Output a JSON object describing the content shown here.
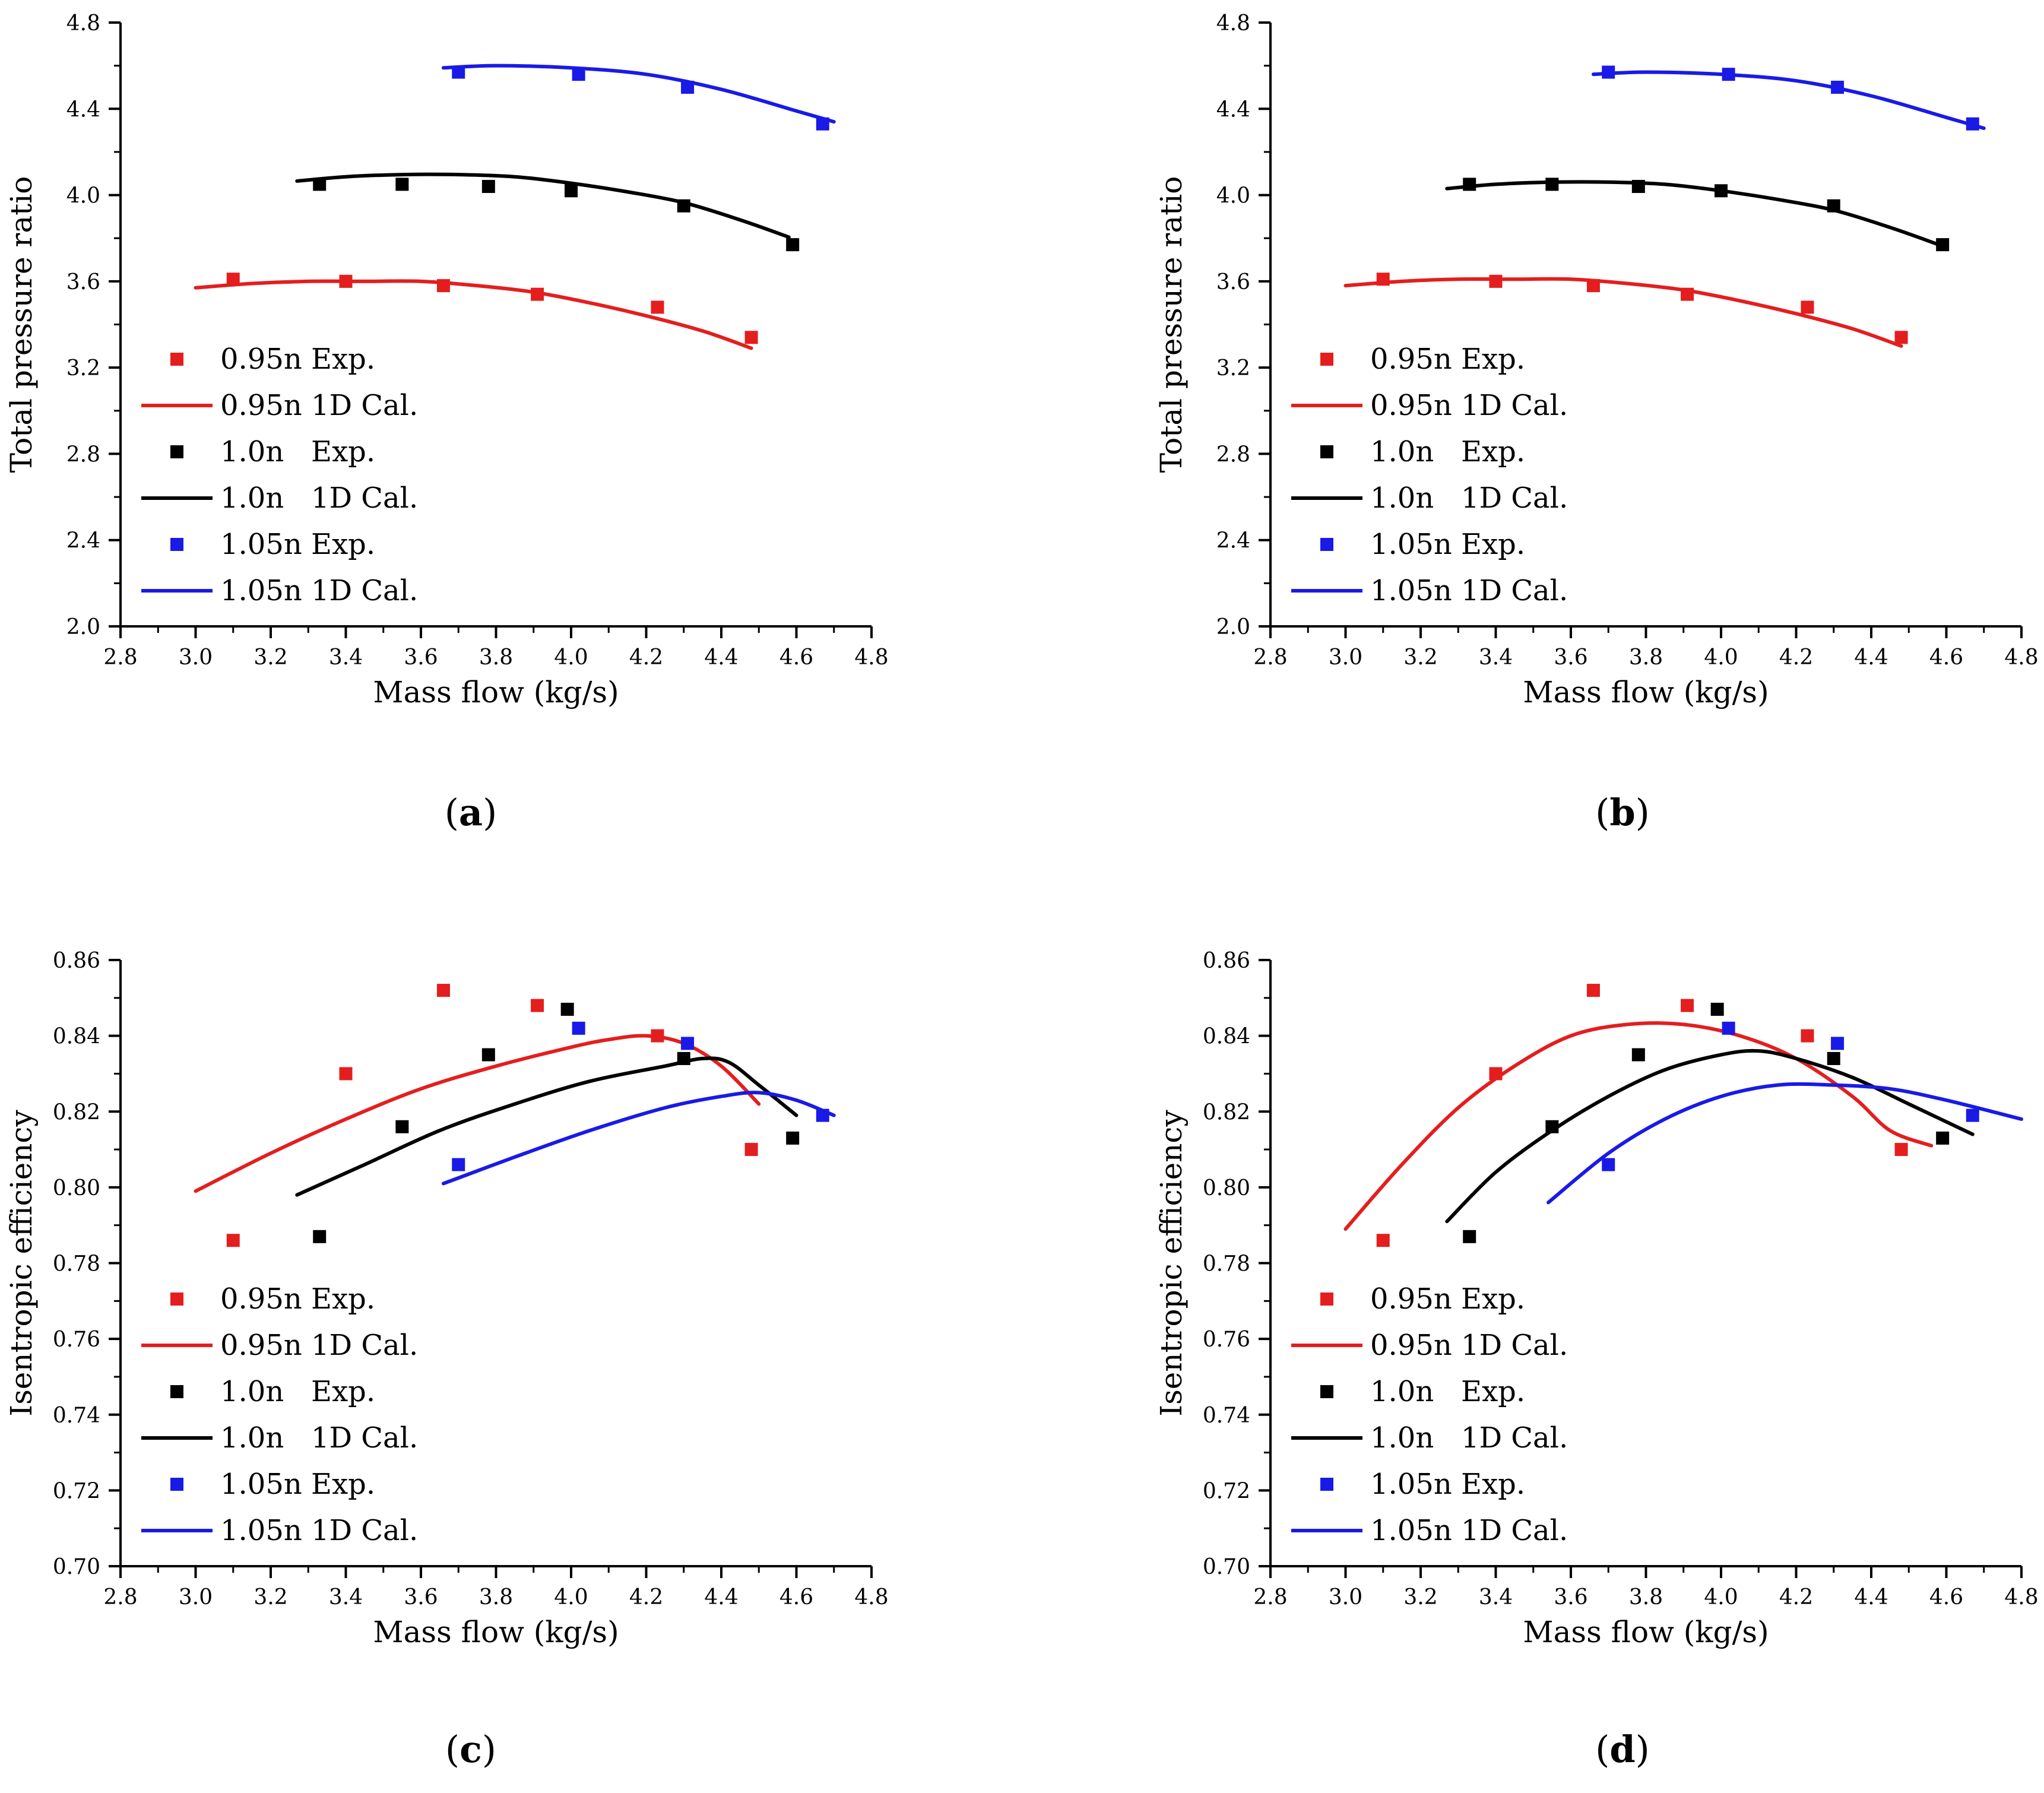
{
  "chart_data": [
    {
      "type": "line",
      "panel_label": "b",
      "xlabel": "Mass flow (kg/s)",
      "ylabel": "Total pressure ratio",
      "xlim": [
        2.8,
        4.8
      ],
      "ylim": [
        2.0,
        4.8
      ],
      "xticks": [
        "2.8",
        "3.0",
        "3.2",
        "3.4",
        "3.6",
        "3.8",
        "4.0",
        "4.2",
        "4.4",
        "4.6",
        "4.8"
      ],
      "yticks": [
        "2.0",
        "2.4",
        "2.8",
        "3.2",
        "3.6",
        "4.0",
        "4.4",
        "4.8"
      ],
      "legend_position": "lower-left",
      "series": [
        {
          "name": "0.95n Exp.",
          "kind": "scatter",
          "color": "#e41e1e",
          "x": [
            3.1,
            3.4,
            3.66,
            3.91,
            4.23,
            4.48
          ],
          "y": [
            3.61,
            3.6,
            3.58,
            3.54,
            3.48,
            3.34
          ]
        },
        {
          "name": "0.95n 1D Cal.",
          "kind": "line",
          "color": "#e41e1e",
          "x": [
            3.0,
            3.15,
            3.3,
            3.45,
            3.6,
            3.75,
            3.9,
            4.05,
            4.2,
            4.35,
            4.48
          ],
          "y": [
            3.58,
            3.6,
            3.61,
            3.61,
            3.61,
            3.59,
            3.56,
            3.51,
            3.45,
            3.38,
            3.3
          ]
        },
        {
          "name": "1.0n   Exp.",
          "kind": "scatter",
          "color": "#000000",
          "x": [
            3.33,
            3.55,
            3.78,
            4.0,
            4.3,
            4.59
          ],
          "y": [
            4.05,
            4.05,
            4.04,
            4.02,
            3.95,
            3.77
          ]
        },
        {
          "name": "1.0n   1D Cal.",
          "kind": "line",
          "color": "#000000",
          "x": [
            3.27,
            3.4,
            3.55,
            3.7,
            3.85,
            4.0,
            4.15,
            4.3,
            4.45,
            4.58
          ],
          "y": [
            4.03,
            4.05,
            4.06,
            4.06,
            4.05,
            4.02,
            3.98,
            3.93,
            3.85,
            3.77
          ]
        },
        {
          "name": "1.05n Exp.",
          "kind": "scatter",
          "color": "#1a1ae6",
          "x": [
            3.7,
            4.02,
            4.31,
            4.67
          ],
          "y": [
            4.57,
            4.56,
            4.5,
            4.33
          ]
        },
        {
          "name": "1.05n 1D Cal.",
          "kind": "line",
          "color": "#1a1ae6",
          "x": [
            3.66,
            3.8,
            4.0,
            4.2,
            4.4,
            4.6,
            4.7
          ],
          "y": [
            4.56,
            4.57,
            4.56,
            4.53,
            4.46,
            4.36,
            4.31
          ]
        }
      ]
    },
    {
      "type": "line",
      "panel_label": "c",
      "xlabel": "Mass flow (kg/s)",
      "ylabel": "Isentropic efficiency",
      "xlim": [
        2.8,
        4.8
      ],
      "ylim": [
        0.7,
        0.86
      ],
      "xticks": [
        "2.8",
        "3.0",
        "3.2",
        "3.4",
        "3.6",
        "3.8",
        "4.0",
        "4.2",
        "4.4",
        "4.6",
        "4.8"
      ],
      "yticks": [
        "0.70",
        "0.72",
        "0.74",
        "0.76",
        "0.78",
        "0.80",
        "0.82",
        "0.84",
        "0.86"
      ],
      "legend_position": "lower-left",
      "series": [
        {
          "name": "0.95n Exp.",
          "kind": "scatter",
          "color": "#e41e1e",
          "x": [
            3.1,
            3.4,
            3.66,
            3.91,
            4.23,
            4.48
          ],
          "y": [
            0.786,
            0.83,
            0.852,
            0.848,
            0.84,
            0.81
          ]
        },
        {
          "name": "0.95n 1D Cal.",
          "kind": "line",
          "color": "#e41e1e",
          "x": [
            3.0,
            3.2,
            3.4,
            3.6,
            3.8,
            4.0,
            4.1,
            4.2,
            4.3,
            4.4,
            4.5
          ],
          "y": [
            0.799,
            0.809,
            0.818,
            0.826,
            0.832,
            0.837,
            0.839,
            0.84,
            0.838,
            0.832,
            0.822
          ]
        },
        {
          "name": "1.0n   Exp.",
          "kind": "scatter",
          "color": "#000000",
          "x": [
            3.33,
            3.55,
            3.78,
            3.99,
            4.3,
            4.59
          ],
          "y": [
            0.787,
            0.816,
            0.835,
            0.847,
            0.834,
            0.813
          ]
        },
        {
          "name": "1.0n   1D Cal.",
          "kind": "line",
          "color": "#000000",
          "x": [
            3.27,
            3.45,
            3.65,
            3.85,
            4.05,
            4.25,
            4.35,
            4.42,
            4.5,
            4.6
          ],
          "y": [
            0.798,
            0.806,
            0.815,
            0.822,
            0.828,
            0.832,
            0.834,
            0.833,
            0.827,
            0.819
          ]
        },
        {
          "name": "1.05n Exp.",
          "kind": "scatter",
          "color": "#1a1ae6",
          "x": [
            3.7,
            4.02,
            4.31,
            4.67
          ],
          "y": [
            0.806,
            0.842,
            0.838,
            0.819
          ]
        },
        {
          "name": "1.05n 1D Cal.",
          "kind": "line",
          "color": "#1a1ae6",
          "x": [
            3.66,
            3.85,
            4.05,
            4.25,
            4.4,
            4.5,
            4.6,
            4.7
          ],
          "y": [
            0.801,
            0.808,
            0.815,
            0.821,
            0.824,
            0.825,
            0.823,
            0.819
          ]
        }
      ]
    },
    {
      "type": "line",
      "panel_label": "d",
      "xlabel": "Mass flow (kg/s)",
      "ylabel": "Isentropic efficiency",
      "xlim": [
        2.8,
        4.8
      ],
      "ylim": [
        0.7,
        0.86
      ],
      "xticks": [
        "2.8",
        "3.0",
        "3.2",
        "3.4",
        "3.6",
        "3.8",
        "4.0",
        "4.2",
        "4.4",
        "4.6",
        "4.8"
      ],
      "yticks": [
        "0.70",
        "0.72",
        "0.74",
        "0.76",
        "0.78",
        "0.80",
        "0.82",
        "0.84",
        "0.86"
      ],
      "legend_position": "lower-left",
      "series": [
        {
          "name": "0.95n Exp.",
          "kind": "scatter",
          "color": "#e41e1e",
          "x": [
            3.1,
            3.4,
            3.66,
            3.91,
            4.23,
            4.48
          ],
          "y": [
            0.786,
            0.83,
            0.852,
            0.848,
            0.84,
            0.81
          ]
        },
        {
          "name": "0.95n 1D Cal.",
          "kind": "line",
          "color": "#e41e1e",
          "x": [
            3.0,
            3.15,
            3.3,
            3.45,
            3.6,
            3.75,
            3.9,
            4.05,
            4.2,
            4.35,
            4.45,
            4.56
          ],
          "y": [
            0.789,
            0.806,
            0.821,
            0.832,
            0.84,
            0.843,
            0.843,
            0.84,
            0.834,
            0.824,
            0.815,
            0.811
          ]
        },
        {
          "name": "1.0n   Exp.",
          "kind": "scatter",
          "color": "#000000",
          "x": [
            3.33,
            3.55,
            3.78,
            3.99,
            4.3,
            4.59
          ],
          "y": [
            0.787,
            0.816,
            0.835,
            0.847,
            0.834,
            0.813
          ]
        },
        {
          "name": "1.0n   1D Cal.",
          "kind": "line",
          "color": "#000000",
          "x": [
            3.27,
            3.4,
            3.55,
            3.7,
            3.85,
            4.0,
            4.1,
            4.2,
            4.35,
            4.5,
            4.67
          ],
          "y": [
            0.791,
            0.804,
            0.815,
            0.824,
            0.831,
            0.835,
            0.836,
            0.834,
            0.829,
            0.822,
            0.814
          ]
        },
        {
          "name": "1.05n Exp.",
          "kind": "scatter",
          "color": "#1a1ae6",
          "x": [
            3.7,
            4.02,
            4.31,
            4.67
          ],
          "y": [
            0.806,
            0.842,
            0.838,
            0.819
          ]
        },
        {
          "name": "1.05n 1D Cal.",
          "kind": "line",
          "color": "#1a1ae6",
          "x": [
            3.54,
            3.7,
            3.85,
            4.0,
            4.15,
            4.3,
            4.45,
            4.6,
            4.8
          ],
          "y": [
            0.796,
            0.809,
            0.818,
            0.824,
            0.827,
            0.827,
            0.826,
            0.823,
            0.818
          ]
        }
      ]
    }
  ]
}
